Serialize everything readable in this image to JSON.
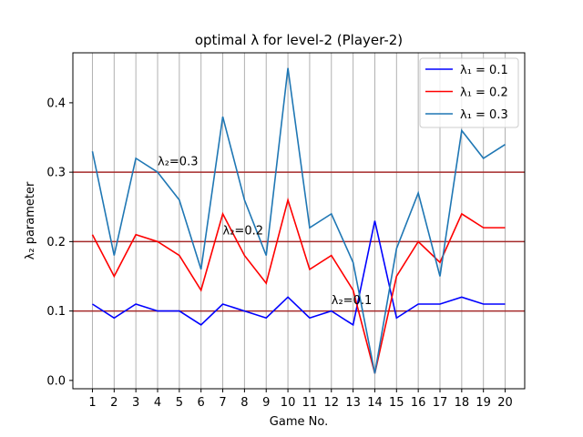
{
  "chart_data": {
    "type": "line",
    "title": "optimal λ for level-2 (Player-2)",
    "xlabel": "Game No.",
    "ylabel": "λ₂ parameter",
    "x": [
      1,
      2,
      3,
      4,
      5,
      6,
      7,
      8,
      9,
      10,
      11,
      12,
      13,
      14,
      15,
      16,
      17,
      18,
      19,
      20
    ],
    "xlim": [
      0.1,
      20.9
    ],
    "ylim": [
      -0.012,
      0.472
    ],
    "xticks": [
      "1",
      "2",
      "3",
      "4",
      "5",
      "6",
      "7",
      "8",
      "9",
      "10",
      "11",
      "12",
      "13",
      "14",
      "15",
      "16",
      "17",
      "18",
      "19",
      "20"
    ],
    "yticks": [
      0.0,
      0.1,
      0.2,
      0.3,
      0.4
    ],
    "ytick_labels": [
      "0.0",
      "0.1",
      "0.2",
      "0.3",
      "0.4"
    ],
    "grid": "x-only",
    "legend_position": "top-right",
    "series": [
      {
        "name": "λ₁ = 0.1",
        "color": "#0000ff",
        "values": [
          0.11,
          0.09,
          0.11,
          0.1,
          0.1,
          0.08,
          0.11,
          0.1,
          0.09,
          0.12,
          0.09,
          0.1,
          0.08,
          0.23,
          0.09,
          0.11,
          0.11,
          0.12,
          0.11,
          0.11
        ]
      },
      {
        "name": "λ₁ = 0.2",
        "color": "#ff0000",
        "values": [
          0.21,
          0.15,
          0.21,
          0.2,
          0.18,
          0.13,
          0.24,
          0.18,
          0.14,
          0.26,
          0.16,
          0.18,
          0.13,
          0.01,
          0.15,
          0.2,
          0.17,
          0.24,
          0.22,
          0.22
        ]
      },
      {
        "name": "λ₁ = 0.3",
        "color": "#1f77b4",
        "values": [
          0.33,
          0.18,
          0.32,
          0.3,
          0.26,
          0.16,
          0.38,
          0.26,
          0.18,
          0.45,
          0.22,
          0.24,
          0.17,
          0.01,
          0.19,
          0.27,
          0.15,
          0.36,
          0.32,
          0.34
        ]
      }
    ],
    "reference_lines": [
      {
        "y": 0.1,
        "color": "#a52a2a"
      },
      {
        "y": 0.2,
        "color": "#a52a2a"
      },
      {
        "y": 0.3,
        "color": "#a52a2a"
      }
    ],
    "annotations": [
      {
        "text": "λ₂=0.3",
        "x": 4.0,
        "y": 0.31
      },
      {
        "text": "λ₂=0.2",
        "x": 7.0,
        "y": 0.21
      },
      {
        "text": "λ₂=0.1",
        "x": 12.0,
        "y": 0.11
      }
    ]
  }
}
